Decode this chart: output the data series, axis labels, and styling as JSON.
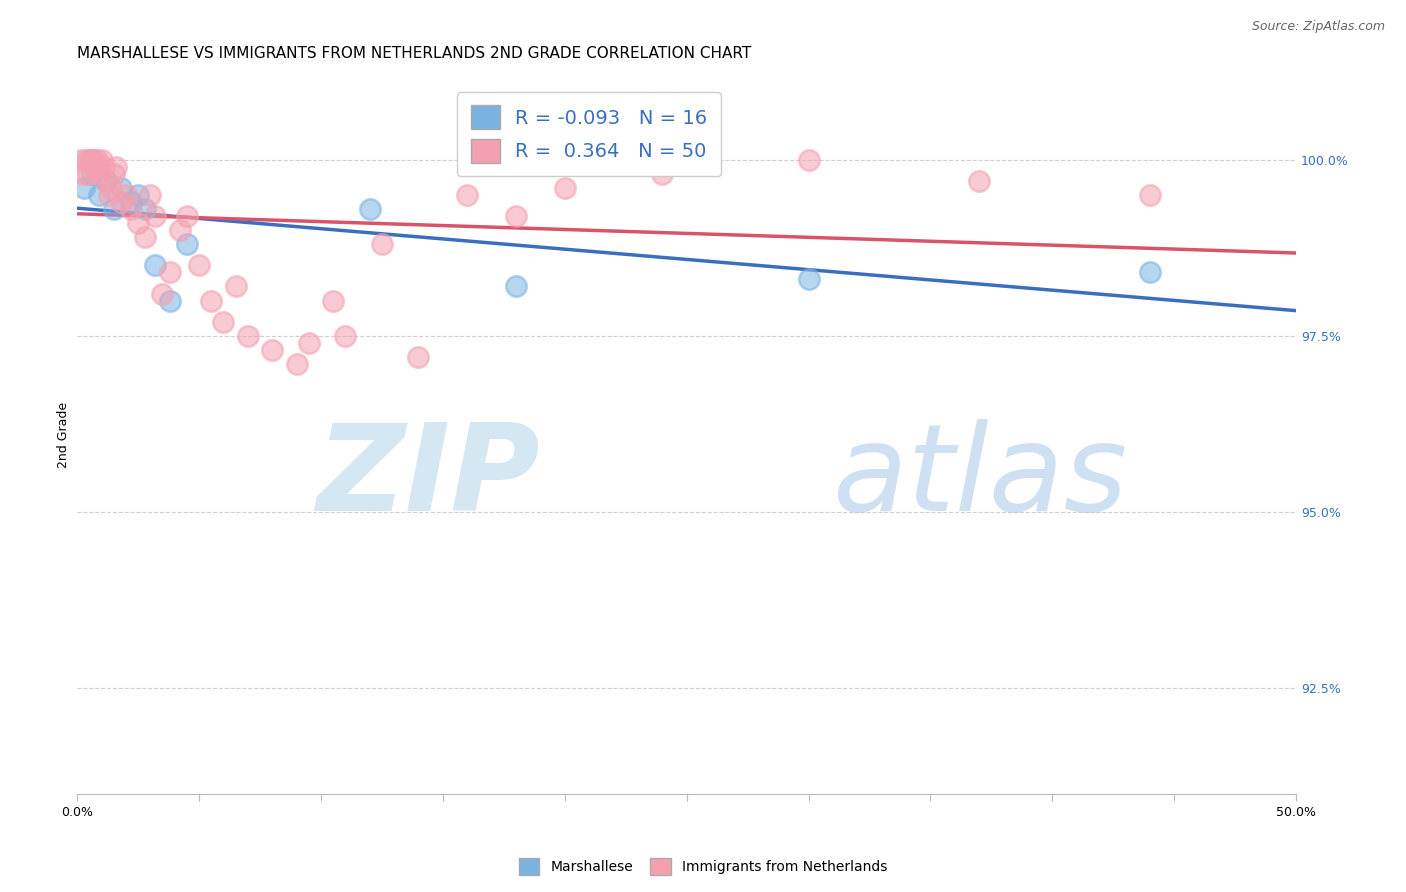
{
  "title": "MARSHALLESE VS IMMIGRANTS FROM NETHERLANDS 2ND GRADE CORRELATION CHART",
  "source": "Source: ZipAtlas.com",
  "ylabel": "2nd Grade",
  "ylabel_right_ticks": [
    92.5,
    95.0,
    97.5,
    100.0
  ],
  "xmin": 0.0,
  "xmax": 50.0,
  "ymin": 91.0,
  "ymax": 101.2,
  "blue_R": -0.093,
  "blue_N": 16,
  "pink_R": 0.364,
  "pink_N": 50,
  "blue_color": "#7ab3e0",
  "pink_color": "#f4a0b0",
  "blue_line_color": "#3a6fbf",
  "pink_line_color": "#d9536a",
  "blue_scatter_x": [
    0.3,
    0.6,
    0.9,
    1.2,
    1.5,
    1.8,
    2.2,
    2.5,
    2.8,
    3.2,
    3.8,
    4.5,
    12.0,
    18.0,
    30.0,
    44.0
  ],
  "blue_scatter_y": [
    99.6,
    99.8,
    99.5,
    99.7,
    99.3,
    99.6,
    99.4,
    99.5,
    99.3,
    98.5,
    98.0,
    98.8,
    99.3,
    98.2,
    98.3,
    98.4
  ],
  "pink_scatter_x": [
    0.15,
    0.25,
    0.35,
    0.45,
    0.5,
    0.55,
    0.6,
    0.65,
    0.7,
    0.75,
    0.8,
    0.85,
    0.9,
    1.0,
    1.1,
    1.2,
    1.3,
    1.4,
    1.5,
    1.6,
    1.8,
    2.0,
    2.2,
    2.5,
    2.8,
    3.0,
    3.2,
    3.5,
    3.8,
    4.2,
    4.5,
    5.0,
    5.5,
    6.0,
    6.5,
    7.0,
    8.0,
    9.0,
    9.5,
    10.5,
    11.0,
    12.5,
    14.0,
    16.0,
    18.0,
    20.0,
    24.0,
    30.0,
    37.0,
    44.0
  ],
  "pink_scatter_y": [
    100.0,
    99.8,
    100.0,
    99.8,
    100.0,
    100.0,
    100.0,
    100.0,
    100.0,
    99.9,
    100.0,
    99.8,
    99.9,
    100.0,
    99.9,
    99.7,
    99.5,
    99.6,
    99.8,
    99.9,
    99.4,
    99.5,
    99.3,
    99.1,
    98.9,
    99.5,
    99.2,
    98.1,
    98.4,
    99.0,
    99.2,
    98.5,
    98.0,
    97.7,
    98.2,
    97.5,
    97.3,
    97.1,
    97.4,
    98.0,
    97.5,
    98.8,
    97.2,
    99.5,
    99.2,
    99.6,
    99.8,
    100.0,
    99.7,
    99.5
  ],
  "watermark_zip": "ZIP",
  "watermark_atlas": "atlas",
  "grid_color": "#d0d0d0",
  "background_color": "#ffffff",
  "title_fontsize": 11,
  "axis_label_fontsize": 9,
  "tick_label_fontsize": 9,
  "legend_fontsize": 14
}
